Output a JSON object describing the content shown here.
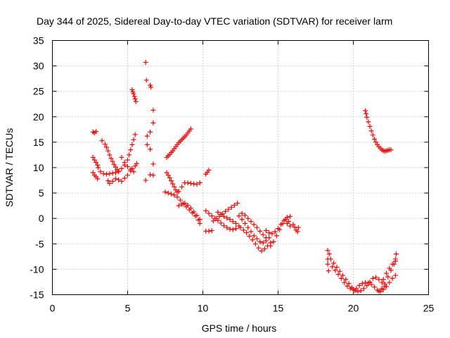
{
  "chart_data": {
    "type": "scatter",
    "title": "Day 344 of 2025, Sidereal Day-to-day VTEC variation (SDTVAR) for receiver larm",
    "xlabel": "GPS time / hours",
    "ylabel": "SDTVAR / TECUs",
    "xlim": [
      0,
      25
    ],
    "ylim": [
      -15,
      35
    ],
    "x_ticks": [
      "0",
      "5",
      "10",
      "15",
      "20",
      "25"
    ],
    "y_ticks": [
      "35",
      "30",
      "25",
      "20",
      "15",
      "10",
      "5",
      "0",
      "-5",
      "-10",
      "-15"
    ],
    "grid": true,
    "marker": "plus",
    "point_color": "#ff0000",
    "series": [
      {
        "points": [
          [
            2.7,
            17.0
          ],
          [
            2.8,
            16.8
          ],
          [
            2.9,
            17.1
          ],
          [
            2.7,
            12.0
          ],
          [
            2.8,
            11.5
          ],
          [
            2.9,
            11.0
          ],
          [
            3.0,
            10.5
          ],
          [
            3.05,
            10.0
          ],
          [
            2.7,
            9.0
          ],
          [
            2.8,
            8.5
          ],
          [
            2.9,
            8.2
          ],
          [
            3.0,
            7.8
          ],
          [
            3.3,
            15.3
          ],
          [
            3.5,
            14.6
          ],
          [
            3.6,
            14.0
          ],
          [
            3.7,
            13.3
          ],
          [
            3.8,
            12.5
          ],
          [
            3.9,
            11.8
          ],
          [
            4.0,
            11.2
          ],
          [
            4.1,
            10.6
          ],
          [
            4.2,
            10.1
          ],
          [
            4.3,
            9.6
          ],
          [
            4.4,
            9.2
          ],
          [
            3.2,
            9.2
          ],
          [
            3.4,
            8.8
          ],
          [
            3.6,
            8.7
          ],
          [
            3.8,
            8.8
          ],
          [
            4.0,
            8.9
          ],
          [
            4.2,
            9.0
          ],
          [
            4.4,
            9.3
          ],
          [
            4.6,
            9.8
          ],
          [
            4.8,
            10.5
          ],
          [
            5.0,
            11.5
          ],
          [
            5.1,
            12.5
          ],
          [
            5.2,
            13.5
          ],
          [
            5.3,
            14.5
          ],
          [
            5.4,
            15.5
          ],
          [
            5.5,
            16.5
          ],
          [
            3.7,
            7.4
          ],
          [
            3.8,
            6.9
          ],
          [
            4.0,
            7.3
          ],
          [
            4.2,
            7.8
          ],
          [
            4.4,
            7.6
          ],
          [
            4.6,
            7.3
          ],
          [
            4.8,
            7.9
          ],
          [
            5.0,
            8.5
          ],
          [
            5.2,
            9.3
          ],
          [
            5.3,
            9.8
          ],
          [
            5.5,
            10.3
          ],
          [
            5.6,
            10.8
          ],
          [
            4.6,
            12.0
          ],
          [
            4.8,
            11.0
          ],
          [
            5.0,
            10.2
          ],
          [
            5.2,
            9.6
          ],
          [
            5.4,
            9.2
          ],
          [
            5.3,
            25.3
          ],
          [
            5.35,
            24.9
          ],
          [
            5.4,
            24.5
          ],
          [
            5.45,
            24.0
          ],
          [
            5.5,
            23.5
          ],
          [
            5.55,
            23.0
          ],
          [
            6.2,
            30.7
          ],
          [
            6.25,
            27.2
          ],
          [
            6.5,
            26.2
          ],
          [
            6.55,
            25.8
          ],
          [
            6.7,
            21.3
          ],
          [
            6.7,
            18.8
          ],
          [
            6.5,
            17.0
          ],
          [
            6.3,
            16.2
          ],
          [
            6.3,
            14.5
          ],
          [
            6.5,
            13.6
          ],
          [
            6.7,
            10.7
          ],
          [
            6.5,
            8.6
          ],
          [
            6.7,
            8.5
          ],
          [
            6.2,
            7.5
          ],
          [
            7.6,
            12.0
          ],
          [
            7.7,
            12.3
          ],
          [
            7.8,
            12.6
          ],
          [
            7.9,
            13.0
          ],
          [
            8.0,
            13.3
          ],
          [
            8.1,
            13.7
          ],
          [
            8.2,
            14.1
          ],
          [
            8.3,
            14.5
          ],
          [
            8.4,
            14.9
          ],
          [
            8.5,
            15.2
          ],
          [
            8.6,
            15.5
          ],
          [
            8.7,
            15.8
          ],
          [
            8.8,
            16.1
          ],
          [
            8.9,
            16.4
          ],
          [
            9.0,
            16.8
          ],
          [
            9.1,
            17.2
          ],
          [
            9.2,
            17.6
          ],
          [
            7.6,
            9.0
          ],
          [
            7.7,
            8.5
          ],
          [
            7.8,
            8.0
          ],
          [
            7.9,
            7.4
          ],
          [
            8.0,
            6.8
          ],
          [
            8.1,
            6.2
          ],
          [
            8.2,
            5.6
          ],
          [
            8.3,
            5.2
          ],
          [
            8.4,
            5.3
          ],
          [
            8.6,
            6.2
          ],
          [
            8.8,
            7.0
          ],
          [
            9.0,
            7.0
          ],
          [
            9.2,
            6.9
          ],
          [
            9.4,
            6.8
          ],
          [
            9.6,
            6.7
          ],
          [
            9.8,
            7.0
          ],
          [
            7.5,
            5.2
          ],
          [
            7.7,
            5.0
          ],
          [
            7.9,
            4.8
          ],
          [
            8.1,
            4.6
          ],
          [
            8.3,
            4.2
          ],
          [
            8.5,
            3.6
          ],
          [
            8.7,
            2.9
          ],
          [
            8.9,
            2.3
          ],
          [
            9.1,
            1.7
          ],
          [
            9.3,
            1.1
          ],
          [
            9.5,
            0.5
          ],
          [
            9.7,
            -0.3
          ],
          [
            9.8,
            -1.0
          ],
          [
            8.4,
            2.5
          ],
          [
            8.6,
            2.8
          ],
          [
            8.8,
            3.0
          ],
          [
            9.0,
            2.6
          ],
          [
            9.2,
            2.0
          ],
          [
            9.4,
            1.3
          ],
          [
            9.6,
            0.6
          ],
          [
            9.8,
            -0.2
          ],
          [
            10.2,
            8.7
          ],
          [
            10.3,
            9.1
          ],
          [
            10.4,
            9.5
          ],
          [
            10.2,
            1.5
          ],
          [
            10.4,
            1.0
          ],
          [
            10.6,
            0.5
          ],
          [
            10.8,
            0.0
          ],
          [
            11.0,
            -0.4
          ],
          [
            11.2,
            -0.9
          ],
          [
            11.4,
            -1.4
          ],
          [
            11.6,
            -1.8
          ],
          [
            11.8,
            -2.1
          ],
          [
            12.0,
            -2.2
          ],
          [
            12.2,
            -2.0
          ],
          [
            10.2,
            -2.5
          ],
          [
            10.4,
            -2.5
          ],
          [
            10.6,
            -2.4
          ],
          [
            10.7,
            -0.5
          ],
          [
            10.9,
            0.0
          ],
          [
            11.1,
            0.4
          ],
          [
            11.3,
            0.9
          ],
          [
            11.5,
            1.4
          ],
          [
            11.7,
            1.8
          ],
          [
            11.9,
            2.2
          ],
          [
            12.1,
            2.6
          ],
          [
            12.3,
            3.0
          ],
          [
            11.0,
            1.2
          ],
          [
            11.2,
            0.8
          ],
          [
            11.4,
            0.4
          ],
          [
            11.6,
            0.1
          ],
          [
            11.8,
            -0.2
          ],
          [
            12.0,
            -0.6
          ],
          [
            12.2,
            -1.0
          ],
          [
            12.4,
            -1.5
          ],
          [
            12.4,
            0.5
          ],
          [
            12.6,
            -0.2
          ],
          [
            12.8,
            -1.0
          ],
          [
            13.0,
            -1.8
          ],
          [
            13.2,
            -2.6
          ],
          [
            13.4,
            -3.4
          ],
          [
            13.6,
            -4.0
          ],
          [
            13.8,
            -4.6
          ],
          [
            14.0,
            -4.8
          ],
          [
            14.2,
            -4.4
          ],
          [
            14.4,
            -3.8
          ],
          [
            12.5,
            -1.8
          ],
          [
            12.7,
            -2.3
          ],
          [
            12.9,
            -2.8
          ],
          [
            13.1,
            -3.5
          ],
          [
            13.3,
            -4.2
          ],
          [
            13.5,
            -5.0
          ],
          [
            13.7,
            -5.8
          ],
          [
            13.9,
            -6.4
          ],
          [
            14.1,
            -6.0
          ],
          [
            14.3,
            -5.4
          ],
          [
            14.5,
            -4.8
          ],
          [
            12.6,
            1.0
          ],
          [
            12.8,
            0.6
          ],
          [
            13.0,
            0.0
          ],
          [
            13.2,
            -0.6
          ],
          [
            13.4,
            -1.2
          ],
          [
            13.6,
            -1.8
          ],
          [
            13.8,
            -2.5
          ],
          [
            14.0,
            -3.2
          ],
          [
            14.2,
            -3.8
          ],
          [
            14.2,
            -2.4
          ],
          [
            14.4,
            -2.8
          ],
          [
            14.6,
            -3.0
          ],
          [
            14.8,
            -2.6
          ],
          [
            15.0,
            -2.0
          ],
          [
            15.2,
            -1.2
          ],
          [
            15.4,
            -0.4
          ],
          [
            15.6,
            0.2
          ],
          [
            15.8,
            0.4
          ],
          [
            14.5,
            -5.4
          ],
          [
            14.7,
            -4.6
          ],
          [
            14.9,
            -3.4
          ],
          [
            15.1,
            -2.2
          ],
          [
            15.3,
            -1.0
          ],
          [
            15.5,
            -0.2
          ],
          [
            15.7,
            -0.6
          ],
          [
            15.6,
            -1.0
          ],
          [
            15.8,
            -1.5
          ],
          [
            16.0,
            -1.2
          ],
          [
            16.1,
            -1.7
          ],
          [
            16.2,
            -2.3
          ],
          [
            16.3,
            -2.6
          ],
          [
            16.35,
            -1.8
          ],
          [
            18.3,
            -6.3
          ],
          [
            18.4,
            -7.0
          ],
          [
            18.3,
            -8.0
          ],
          [
            18.3,
            -9.0
          ],
          [
            18.35,
            -10.3
          ],
          [
            18.5,
            -8.0
          ],
          [
            18.7,
            -8.8
          ],
          [
            18.9,
            -9.6
          ],
          [
            19.1,
            -10.4
          ],
          [
            19.3,
            -11.2
          ],
          [
            19.5,
            -12.0
          ],
          [
            19.7,
            -12.8
          ],
          [
            19.9,
            -13.6
          ],
          [
            20.1,
            -14.2
          ],
          [
            20.3,
            -14.4
          ],
          [
            20.5,
            -14.2
          ],
          [
            20.7,
            -13.8
          ],
          [
            20.9,
            -13.2
          ],
          [
            21.1,
            -12.5
          ],
          [
            21.3,
            -11.8
          ],
          [
            21.5,
            -11.6
          ],
          [
            21.7,
            -12.0
          ],
          [
            21.9,
            -12.6
          ],
          [
            22.1,
            -13.3
          ],
          [
            18.6,
            -9.5
          ],
          [
            18.8,
            -10.2
          ],
          [
            19.0,
            -11.0
          ],
          [
            19.2,
            -11.8
          ],
          [
            19.4,
            -12.6
          ],
          [
            19.6,
            -13.3
          ],
          [
            19.8,
            -13.8
          ],
          [
            20.0,
            -14.0
          ],
          [
            20.2,
            -13.8
          ],
          [
            20.4,
            -13.2
          ],
          [
            20.6,
            -12.8
          ],
          [
            20.8,
            -12.6
          ],
          [
            21.0,
            -12.7
          ],
          [
            21.2,
            -13.0
          ],
          [
            21.4,
            -13.5
          ],
          [
            21.6,
            -14.1
          ],
          [
            21.8,
            -14.4
          ],
          [
            22.0,
            -14.0
          ],
          [
            22.2,
            -13.4
          ],
          [
            22.4,
            -12.6
          ],
          [
            22.6,
            -11.8
          ],
          [
            22.8,
            -11.2
          ],
          [
            21.7,
            -14.3
          ],
          [
            21.9,
            -13.8
          ],
          [
            22.1,
            -12.9
          ],
          [
            22.3,
            -11.5
          ],
          [
            22.5,
            -10.2
          ],
          [
            22.7,
            -9.0
          ],
          [
            22.8,
            -8.0
          ],
          [
            22.85,
            -7.0
          ],
          [
            22.0,
            -12.0
          ],
          [
            22.2,
            -10.8
          ],
          [
            22.4,
            -9.8
          ],
          [
            22.6,
            -9.0
          ],
          [
            22.8,
            -8.4
          ],
          [
            20.8,
            21.2
          ],
          [
            20.85,
            20.6
          ],
          [
            20.9,
            19.9
          ],
          [
            21.0,
            19.0
          ],
          [
            21.1,
            18.1
          ],
          [
            21.2,
            17.2
          ],
          [
            21.3,
            16.4
          ],
          [
            21.4,
            15.6
          ],
          [
            21.5,
            15.0
          ],
          [
            21.6,
            14.5
          ],
          [
            21.7,
            14.1
          ],
          [
            21.8,
            13.8
          ],
          [
            21.9,
            13.5
          ],
          [
            22.0,
            13.3
          ],
          [
            22.1,
            13.2
          ],
          [
            22.2,
            13.3
          ],
          [
            22.3,
            13.4
          ],
          [
            22.4,
            13.5
          ],
          [
            22.5,
            13.5
          ]
        ]
      }
    ]
  }
}
